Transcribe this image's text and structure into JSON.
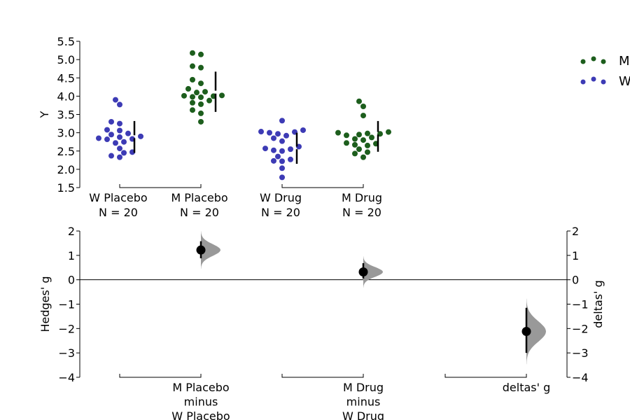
{
  "colors": {
    "W": "#3d3bb5",
    "M": "#1d5e1d",
    "ink": "#000000",
    "violin": "#999999"
  },
  "legend": {
    "items": [
      {
        "label": "M",
        "color": "#1d5e1d"
      },
      {
        "label": "W",
        "color": "#3d3bb5"
      }
    ]
  },
  "chart_data": [
    {
      "type": "scatter",
      "ylabel": "Y",
      "ylim": [
        1.5,
        5.5
      ],
      "yticks": [
        "1.5",
        "2.0",
        "2.5",
        "3.0",
        "3.5",
        "4.0",
        "4.5",
        "5.0",
        "5.5"
      ],
      "groups": [
        {
          "label": "W Placebo",
          "n_label": "N = 20",
          "sex": "W",
          "ci": [
            2.45,
            3.32
          ],
          "gap": [
            2.85,
            2.93
          ],
          "values": [
            3.9,
            3.77,
            3.3,
            3.25,
            3.08,
            3.06,
            2.98,
            2.95,
            2.9,
            2.88,
            2.85,
            2.83,
            2.82,
            2.75,
            2.72,
            2.57,
            2.47,
            2.45,
            2.37,
            2.33
          ]
        },
        {
          "label": "M Placebo",
          "n_label": "N = 20",
          "sex": "M",
          "ci": [
            3.57,
            4.67
          ],
          "gap": [
            4.07,
            4.15
          ],
          "values": [
            5.18,
            5.14,
            4.82,
            4.78,
            4.45,
            4.35,
            4.2,
            4.12,
            4.1,
            4.02,
            4.01,
            4.0,
            3.98,
            3.97,
            3.88,
            3.82,
            3.78,
            3.62,
            3.53,
            3.3
          ]
        },
        {
          "label": "W Drug",
          "n_label": "N = 20",
          "sex": "W",
          "ci": [
            2.15,
            3.0
          ],
          "gap": [
            2.55,
            2.62
          ],
          "values": [
            3.33,
            3.07,
            3.03,
            3.02,
            3.0,
            2.97,
            2.92,
            2.85,
            2.77,
            2.62,
            2.57,
            2.55,
            2.52,
            2.5,
            2.35,
            2.27,
            2.23,
            2.22,
            2.03,
            1.78
          ]
        },
        {
          "label": "M Drug",
          "n_label": "N = 20",
          "sex": "M",
          "ci": [
            2.48,
            3.32
          ],
          "gap": [
            2.95,
            3.02
          ],
          "values": [
            3.86,
            3.72,
            3.47,
            3.02,
            3.0,
            2.98,
            2.97,
            2.95,
            2.93,
            2.87,
            2.83,
            2.8,
            2.72,
            2.7,
            2.67,
            2.65,
            2.55,
            2.47,
            2.43,
            2.33
          ]
        }
      ]
    },
    {
      "type": "scatter",
      "ylabel": "Hedges' g",
      "ylabel_right": "deltas' g",
      "ylim": [
        -4,
        2
      ],
      "yticks": [
        "−4",
        "−3",
        "−2",
        "−1",
        "0",
        "1",
        "2"
      ],
      "contrasts": [
        {
          "label_lines": [
            "M Placebo",
            "minus",
            "W Placebo"
          ],
          "g": 1.22,
          "ci": [
            0.88,
            1.58
          ],
          "dist_sd": 0.24
        },
        {
          "label_lines": [
            "M Drug",
            "minus",
            "W Drug"
          ],
          "g": 0.32,
          "ci": [
            0.05,
            0.68
          ],
          "dist_sd": 0.2
        },
        {
          "label_lines": [
            "deltas' g"
          ],
          "g": -2.12,
          "ci": [
            -3.0,
            -1.15
          ],
          "dist_sd": 0.42
        }
      ]
    }
  ]
}
